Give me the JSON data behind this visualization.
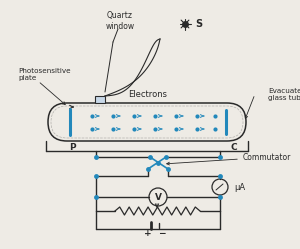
{
  "bg_color": "#eeebe5",
  "line_color": "#2a2a2a",
  "blue_color": "#2288bb",
  "labels": {
    "quartz_window": "Quartz\nwindow",
    "S": "S",
    "evacuated": "Evacuated\nglass tube",
    "photosensitive": "Photosensitive\nplate",
    "electrons": "Electrons",
    "P": "P",
    "C": "C",
    "commutator": "Commutator",
    "muA": "μA",
    "V": "V",
    "plus": "+",
    "minus": "−"
  },
  "figsize": [
    3.0,
    2.49
  ],
  "dpi": 100
}
